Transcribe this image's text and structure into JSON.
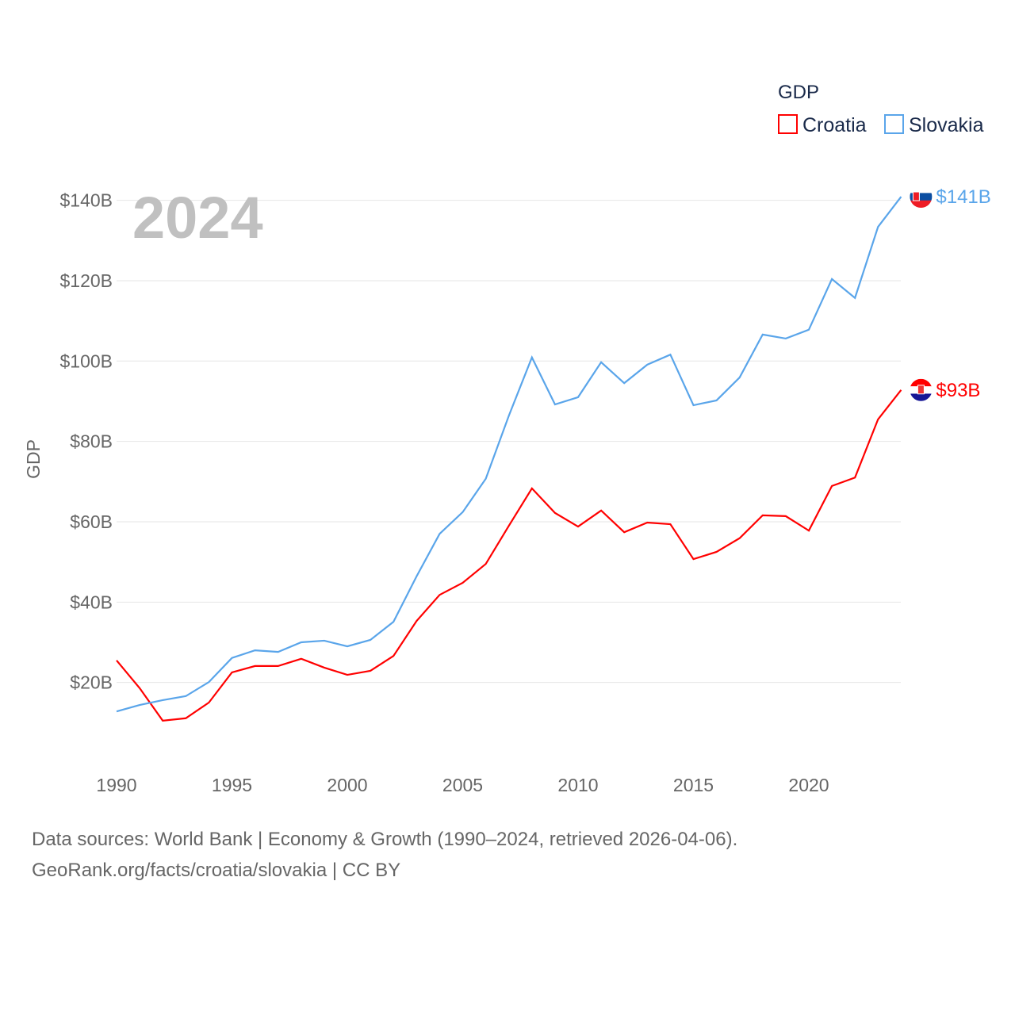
{
  "chart_data": {
    "type": "line",
    "title": "",
    "year_label": "2024",
    "xlabel": "",
    "ylabel": "GDP",
    "legend_title": "GDP",
    "legend_position": "top-right",
    "xlim": [
      1990,
      2024
    ],
    "ylim": [
      0,
      140
    ],
    "x_ticks": [
      1990,
      1995,
      2000,
      2005,
      2010,
      2015,
      2020
    ],
    "y_ticks": [
      20,
      40,
      60,
      80,
      100,
      120,
      140
    ],
    "y_tick_labels": [
      "$20B",
      "$40B",
      "$60B",
      "$80B",
      "$100B",
      "$120B",
      "$140B"
    ],
    "grid": true,
    "x": [
      1990,
      1991,
      1992,
      1993,
      1994,
      1995,
      1996,
      1997,
      1998,
      1999,
      2000,
      2001,
      2002,
      2003,
      2004,
      2005,
      2006,
      2007,
      2008,
      2009,
      2010,
      2011,
      2012,
      2013,
      2014,
      2015,
      2016,
      2017,
      2018,
      2019,
      2020,
      2021,
      2022,
      2023,
      2024
    ],
    "series": [
      {
        "name": "Croatia",
        "color": "#ff0000",
        "end_label": "$93B",
        "values": [
          25.5,
          18.6,
          10.5,
          11.1,
          15.0,
          22.5,
          24.1,
          24.1,
          25.9,
          23.7,
          21.9,
          22.9,
          26.6,
          35.3,
          41.8,
          44.8,
          49.5,
          59.0,
          68.3,
          62.2,
          58.8,
          62.8,
          57.4,
          59.8,
          59.4,
          50.7,
          52.5,
          55.9,
          61.6,
          61.4,
          57.8,
          68.9,
          71.0,
          85.5,
          92.8
        ]
      },
      {
        "name": "Slovakia",
        "color": "#5aa5ea",
        "end_label": "$141B",
        "values": [
          12.8,
          14.4,
          15.6,
          16.6,
          20.1,
          26.1,
          28.0,
          27.6,
          30.0,
          30.4,
          29.0,
          30.6,
          35.1,
          46.4,
          57.0,
          62.4,
          70.7,
          86.4,
          100.9,
          89.2,
          91.0,
          99.7,
          94.5,
          99.1,
          101.6,
          89.0,
          90.2,
          95.9,
          106.6,
          105.6,
          107.8,
          120.4,
          115.7,
          133.4,
          140.9
        ]
      }
    ]
  },
  "footer": {
    "line1": "Data sources: World Bank | Economy & Growth (1990–2024, retrieved 2026-04-06).",
    "line2": "GeoRank.org/facts/croatia/slovakia | CC BY"
  }
}
